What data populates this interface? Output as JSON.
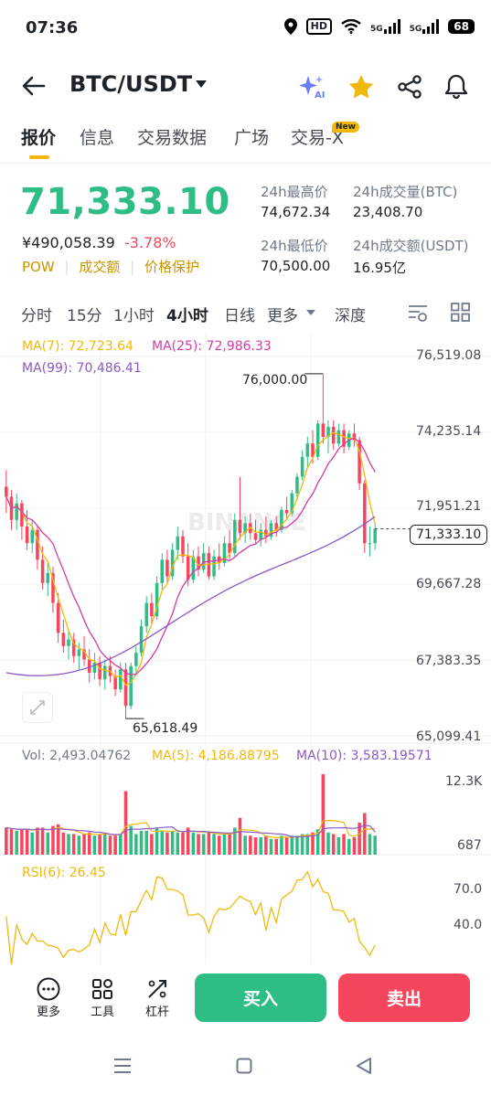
{
  "status_bar": {
    "time": "07:36",
    "hd": "HD",
    "net1": "5G",
    "net2": "5G",
    "battery": "68"
  },
  "header": {
    "pair": "BTC/USDT",
    "icons": [
      "back-arrow-icon",
      "ai-sparkle-icon",
      "star-icon",
      "share-icon",
      "bell-icon"
    ]
  },
  "tabs": [
    {
      "label": "报价",
      "active": true
    },
    {
      "label": "信息"
    },
    {
      "label": "交易数据"
    },
    {
      "label": "广场"
    },
    {
      "label": "交易-X",
      "badge": "New"
    }
  ],
  "price": {
    "last": "71,333.10",
    "cny": "¥490,058.39",
    "change": "-3.78%",
    "tags": [
      "POW",
      "成交额",
      "价格保护"
    ]
  },
  "stats": {
    "high_label": "24h最高价",
    "high": "74,672.34",
    "vol_label": "24h成交量(BTC)",
    "vol": "23,408.70",
    "low_label": "24h最低价",
    "low": "70,500.00",
    "turnover_label": "24h成交额(USDT)",
    "turnover": "16.95亿"
  },
  "intervals": {
    "items": [
      "分时",
      "15分",
      "1小时",
      "4小时",
      "日线",
      "更多",
      "深度"
    ],
    "active": "4小时"
  },
  "legend": {
    "ma7": "MA(7): 72,723.64",
    "ma25": "MA(25): 72,986.33",
    "ma99": "MA(99): 70,486.41",
    "vol": "Vol: 2,493.04762",
    "vma5": "MA(5): 4,186.88795",
    "vma10": "MA(10): 3,583.19571",
    "rsi": "RSI(6): 26.45"
  },
  "colors": {
    "up": "#2ebd85",
    "down": "#f6465d",
    "ma7": "#f0b90b",
    "ma25": "#d63ba7",
    "ma99": "#8a5ac7",
    "accent": "#f0b90b"
  },
  "chart_data": {
    "type": "candlestick",
    "price_axis": [
      "76,519.08",
      "74,235.14",
      "71,951.21",
      "69,667.28",
      "67,383.35",
      "65,099.41"
    ],
    "ylim": [
      65099.41,
      76519.08
    ],
    "high_marker": "76,000.00",
    "low_marker": "65,618.49",
    "current_price": "71,333.10",
    "volume_axis": [
      "12.3K",
      "687"
    ],
    "rsi_axis": [
      "70.0",
      "40.0"
    ],
    "watermark": "BINANCE",
    "candles": [
      [
        72600,
        73100,
        71800,
        72300
      ],
      [
        72300,
        72500,
        71300,
        71600
      ],
      [
        71600,
        72400,
        71300,
        72100
      ],
      [
        72100,
        72200,
        71000,
        71400
      ],
      [
        71400,
        71900,
        70700,
        70900
      ],
      [
        70900,
        71600,
        70600,
        71300
      ],
      [
        71300,
        71400,
        70100,
        70400
      ],
      [
        70400,
        70800,
        69500,
        69700
      ],
      [
        69700,
        70300,
        69300,
        70000
      ],
      [
        70000,
        70200,
        68800,
        69100
      ],
      [
        69100,
        69400,
        67900,
        68200
      ],
      [
        68200,
        68600,
        67600,
        67800
      ],
      [
        67800,
        68300,
        67400,
        68000
      ],
      [
        68000,
        68200,
        67300,
        67500
      ],
      [
        67500,
        67900,
        67100,
        67700
      ],
      [
        67700,
        68100,
        67200,
        67400
      ],
      [
        67400,
        67700,
        66700,
        67000
      ],
      [
        67000,
        67600,
        66800,
        67300
      ],
      [
        67300,
        67500,
        66600,
        66800
      ],
      [
        66800,
        67400,
        66500,
        67200
      ],
      [
        67200,
        67500,
        66700,
        66900
      ],
      [
        66900,
        67100,
        66300,
        66500
      ],
      [
        66500,
        67300,
        66400,
        67100
      ],
      [
        67100,
        67300,
        65618.49,
        66000
      ],
      [
        66000,
        67300,
        65900,
        67200
      ],
      [
        67200,
        67800,
        66900,
        67600
      ],
      [
        67600,
        68600,
        67500,
        68400
      ],
      [
        68400,
        69300,
        68200,
        69100
      ],
      [
        69100,
        69400,
        68500,
        68700
      ],
      [
        68700,
        69900,
        68600,
        69700
      ],
      [
        69700,
        70600,
        69500,
        70400
      ],
      [
        70400,
        70700,
        69700,
        69900
      ],
      [
        69900,
        70900,
        69800,
        70700
      ],
      [
        70700,
        71400,
        70400,
        71100
      ],
      [
        71100,
        71300,
        70300,
        70500
      ],
      [
        70500,
        70900,
        69600,
        69800
      ],
      [
        69800,
        70700,
        69700,
        70500
      ],
      [
        70500,
        70800,
        69900,
        70100
      ],
      [
        70100,
        70900,
        70000,
        70600
      ],
      [
        70600,
        70800,
        69800,
        69900
      ],
      [
        69900,
        70700,
        69800,
        70500
      ],
      [
        70500,
        70900,
        70100,
        70300
      ],
      [
        70300,
        71100,
        70200,
        70900
      ],
      [
        70900,
        71300,
        70400,
        70600
      ],
      [
        70600,
        71800,
        70500,
        71600
      ],
      [
        71600,
        72900,
        71000,
        71200
      ],
      [
        71200,
        71700,
        70900,
        71500
      ],
      [
        71500,
        71800,
        71000,
        71200
      ],
      [
        71200,
        71600,
        70900,
        71000
      ],
      [
        71000,
        71500,
        70800,
        71300
      ],
      [
        71300,
        71700,
        70900,
        71100
      ],
      [
        71100,
        71600,
        71000,
        71500
      ],
      [
        71500,
        71700,
        71100,
        71300
      ],
      [
        71300,
        72000,
        71200,
        71900
      ],
      [
        71900,
        72300,
        71600,
        71800
      ],
      [
        71800,
        72500,
        71700,
        72400
      ],
      [
        72400,
        73000,
        72200,
        72900
      ],
      [
        72900,
        73700,
        72800,
        73500
      ],
      [
        73500,
        74100,
        73200,
        73900
      ],
      [
        73900,
        74300,
        73300,
        73500
      ],
      [
        73500,
        74600,
        73400,
        74500
      ],
      [
        74500,
        76000,
        73900,
        74100
      ],
      [
        74100,
        74600,
        73600,
        74400
      ],
      [
        74400,
        74600,
        73700,
        73900
      ],
      [
        73900,
        74500,
        73800,
        74300
      ],
      [
        74300,
        74500,
        73600,
        73800
      ],
      [
        73800,
        74300,
        73700,
        74200
      ],
      [
        74200,
        74500,
        73800,
        74000
      ],
      [
        74000,
        74100,
        72500,
        72700
      ],
      [
        72700,
        72800,
        70600,
        70900
      ],
      [
        70900,
        71400,
        70500,
        70900
      ],
      [
        70900,
        71500,
        70700,
        71333.1
      ]
    ]
  }
}
